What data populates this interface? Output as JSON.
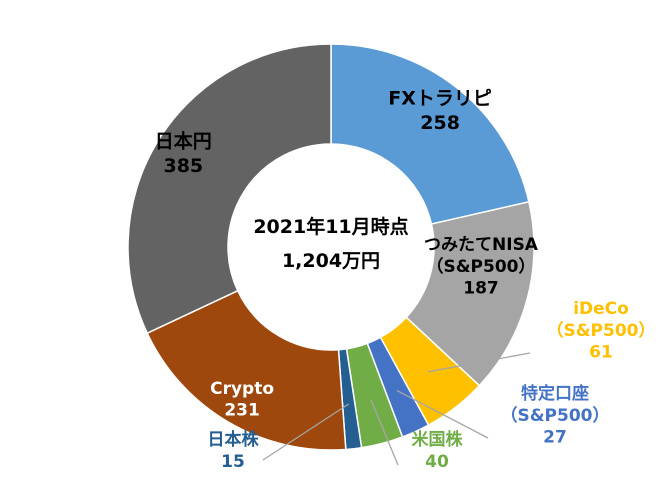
{
  "chart_data": {
    "type": "donut",
    "title": "",
    "center_text": [
      "2021年11月時点",
      "1,204万円"
    ],
    "slices": [
      {
        "name": "FXトラリピ",
        "name_lines": [
          "FXトラリピ"
        ],
        "value": 258,
        "color": "#5b9bd5",
        "label_color": "#000000"
      },
      {
        "name": "つみたてNISA（S&P500）",
        "name_lines": [
          "つみたてNISA",
          "（S&P500）"
        ],
        "value": 187,
        "color": "#a5a5a5",
        "label_color": "#000000"
      },
      {
        "name": "iDeCo（S&P500）",
        "name_lines": [
          "iDeCo",
          "（S&P500）"
        ],
        "value": 61,
        "color": "#ffc000",
        "label_color": "#ffc000"
      },
      {
        "name": "特定口座（S&P500）",
        "name_lines": [
          "特定口座",
          "（S&P500）"
        ],
        "value": 27,
        "color": "#4472c4",
        "label_color": "#4472c4"
      },
      {
        "name": "米国株",
        "name_lines": [
          "米国株"
        ],
        "value": 40,
        "color": "#70ad47",
        "label_color": "#70ad47"
      },
      {
        "name": "日本株",
        "name_lines": [
          "日本株"
        ],
        "value": 15,
        "color": "#255e91",
        "label_color": "#255e91"
      },
      {
        "name": "Crypto",
        "name_lines": [
          "Crypto"
        ],
        "value": 231,
        "color": "#9e480e",
        "label_color": "#ffffff"
      },
      {
        "name": "日本円",
        "name_lines": [
          "日本円"
        ],
        "value": 385,
        "color": "#636363",
        "label_color": "#000000"
      }
    ]
  }
}
